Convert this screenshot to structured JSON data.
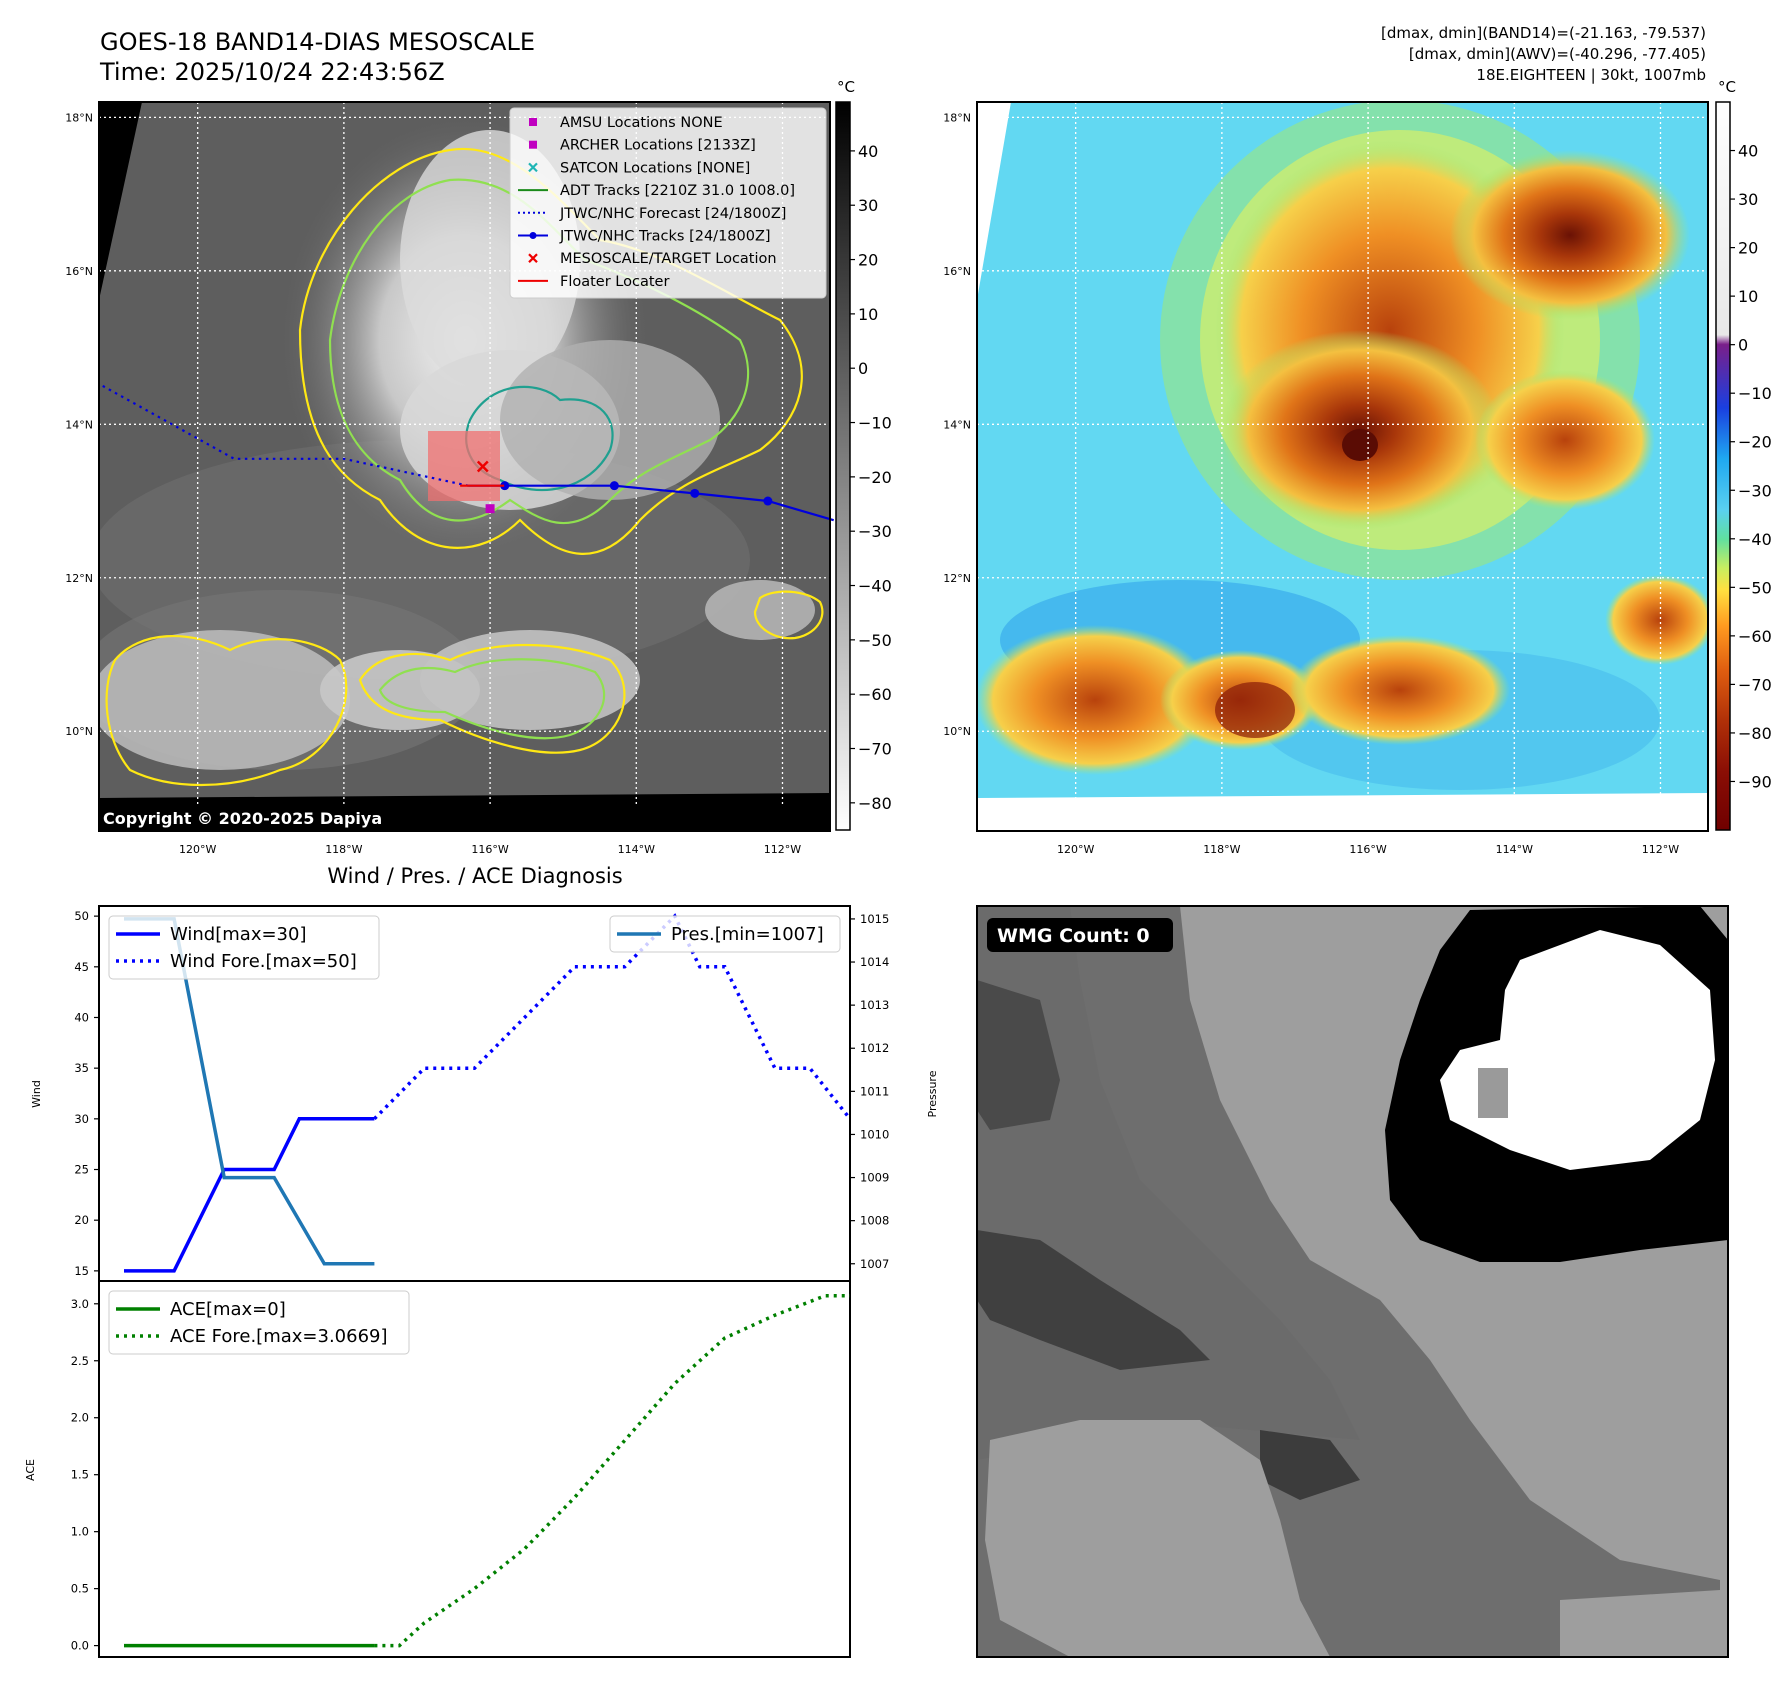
{
  "header": {
    "title_line1": "GOES-18 BAND14-DIAS MESOSCALE",
    "title_line2": "Time: 2025/10/24 22:43:56Z",
    "stats_line1": "[dmax, dmin](BAND14)=(-21.163, -79.537)",
    "stats_line2": "[dmax, dmin](AWV)=(-40.296, -77.405)",
    "stats_line3": "18E.EIGHTEEN | 30kt, 1007mb"
  },
  "map": {
    "lat_labels": [
      "18°N",
      "16°N",
      "14°N",
      "12°N",
      "10°N"
    ],
    "lon_labels": [
      "120°W",
      "118°W",
      "116°W",
      "114°W",
      "112°W"
    ],
    "lat_values": [
      18,
      16,
      14,
      12,
      10
    ],
    "lon_values": [
      -120,
      -118,
      -116,
      -114,
      -112
    ],
    "lat_range": [
      8.7,
      18.2
    ],
    "lon_range": [
      -121.35,
      -111.35
    ],
    "copyright": "Copyright © 2020-2025 Dapiya",
    "legend": [
      {
        "label": "AMSU Locations NONE",
        "marker": "square",
        "color": "#c000c0"
      },
      {
        "label": "ARCHER Locations [2133Z]",
        "marker": "square",
        "color": "#c000c0"
      },
      {
        "label": "SATCON Locations [NONE]",
        "marker": "x",
        "color": "#1fb5b5"
      },
      {
        "label": "ADT Tracks [2210Z 31.0 1008.0]",
        "marker": "line",
        "color": "#1a8a1a"
      },
      {
        "label": "JTWC/NHC Forecast [24/1800Z]",
        "marker": "dotted",
        "color": "#0000dd"
      },
      {
        "label": "JTWC/NHC Tracks [24/1800Z]",
        "marker": "line-dot",
        "color": "#0000dd"
      },
      {
        "label": "MESOSCALE/TARGET Location",
        "marker": "x",
        "color": "#ee0000"
      },
      {
        "label": "Floater Locater",
        "marker": "line",
        "color": "#ee0000"
      }
    ],
    "track_observed": [
      [
        -116.3,
        13.2
      ],
      [
        -115.8,
        13.2
      ],
      [
        -114.3,
        13.2
      ],
      [
        -113.2,
        13.1
      ],
      [
        -112.2,
        13.0
      ],
      [
        -111.3,
        12.75
      ]
    ],
    "track_forecast": [
      [
        -121.3,
        14.5
      ],
      [
        -119.5,
        13.55
      ],
      [
        -118.0,
        13.55
      ],
      [
        -116.3,
        13.2
      ]
    ],
    "target": [
      -116.1,
      13.45
    ],
    "archer": [
      -116.0,
      12.9
    ]
  },
  "cbar_left": {
    "unit": "°C",
    "ticks": [
      "40",
      "30",
      "20",
      "10",
      "0",
      "−10",
      "−20",
      "−30",
      "−40",
      "−50",
      "−60",
      "−70",
      "−80"
    ],
    "values": [
      40,
      30,
      20,
      10,
      0,
      -10,
      -20,
      -30,
      -40,
      -50,
      -60,
      -70,
      -80
    ],
    "range": [
      -85,
      49
    ]
  },
  "cbar_right": {
    "unit": "°C",
    "ticks": [
      "40",
      "30",
      "20",
      "10",
      "0",
      "−10",
      "−20",
      "−30",
      "−40",
      "−50",
      "−60",
      "−70",
      "−80",
      "−90"
    ],
    "values": [
      40,
      30,
      20,
      10,
      0,
      -10,
      -20,
      -30,
      -40,
      -50,
      -60,
      -70,
      -80,
      -90
    ],
    "range": [
      -100,
      50
    ]
  },
  "diag": {
    "title": "Wind / Pres. / ACE Diagnosis",
    "wind_ylabel": "Wind",
    "pres_ylabel": "Pressure",
    "ace_ylabel": "ACE",
    "wind_legend": [
      "Wind[max=30]",
      "Wind Fore.[max=50]"
    ],
    "pres_legend": [
      "Pres.[min=1007]"
    ],
    "ace_legend": [
      "ACE[max=0]",
      "ACE Fore.[max=3.0669]"
    ]
  },
  "wmg": {
    "label": "WMG Count: 0"
  },
  "chart_data": [
    {
      "type": "line",
      "title": "Wind / Pres. / ACE Diagnosis",
      "ylabel": "Wind",
      "x_range": [
        -0.5,
        14.5
      ],
      "ylim": [
        14,
        51
      ],
      "yticks": [
        15,
        20,
        25,
        30,
        35,
        40,
        45,
        50
      ],
      "series": [
        {
          "name": "Wind[max=30]",
          "color": "#0000ff",
          "style": "solid",
          "x": [
            0,
            1,
            2,
            3,
            3.5,
            4,
            5
          ],
          "values": [
            15,
            15,
            25,
            25,
            30,
            30,
            30
          ]
        },
        {
          "name": "Wind Fore.[max=50]",
          "color": "#0000ff",
          "style": "dotted",
          "x": [
            5,
            6,
            7,
            8,
            9,
            10,
            11,
            11.5,
            12,
            13,
            13.7,
            14.5
          ],
          "values": [
            30,
            35,
            35,
            40,
            45,
            45,
            50,
            45,
            45,
            35,
            35,
            30
          ]
        }
      ]
    },
    {
      "type": "line",
      "ylabel": "Pressure",
      "x_range": [
        -0.5,
        14.5
      ],
      "ylim": [
        1006.6,
        1015.3
      ],
      "yticks": [
        1007,
        1008,
        1009,
        1010,
        1011,
        1012,
        1013,
        1014,
        1015
      ],
      "series": [
        {
          "name": "Pres.[min=1007]",
          "color": "#1f77b4",
          "style": "solid",
          "x": [
            0,
            1,
            2,
            3,
            4,
            5
          ],
          "values": [
            1015,
            1015,
            1009,
            1009,
            1007,
            1007
          ]
        }
      ]
    },
    {
      "type": "line",
      "ylabel": "ACE",
      "x_range": [
        -0.5,
        14.5
      ],
      "ylim": [
        -0.1,
        3.2
      ],
      "yticks": [
        0.0,
        0.5,
        1.0,
        1.5,
        2.0,
        2.5,
        3.0
      ],
      "series": [
        {
          "name": "ACE[max=0]",
          "color": "#008000",
          "style": "solid",
          "x": [
            0,
            1,
            2,
            3,
            4,
            5
          ],
          "values": [
            0,
            0,
            0,
            0,
            0,
            0
          ]
        },
        {
          "name": "ACE Fore.[max=3.0669]",
          "color": "#008000",
          "style": "dotted",
          "x": [
            5,
            5.5,
            6,
            7,
            8,
            9,
            10,
            11,
            12,
            13,
            14,
            14.5
          ],
          "values": [
            0,
            0,
            0.2,
            0.5,
            0.85,
            1.3,
            1.8,
            2.3,
            2.7,
            2.9,
            3.07,
            3.07
          ]
        }
      ]
    }
  ]
}
